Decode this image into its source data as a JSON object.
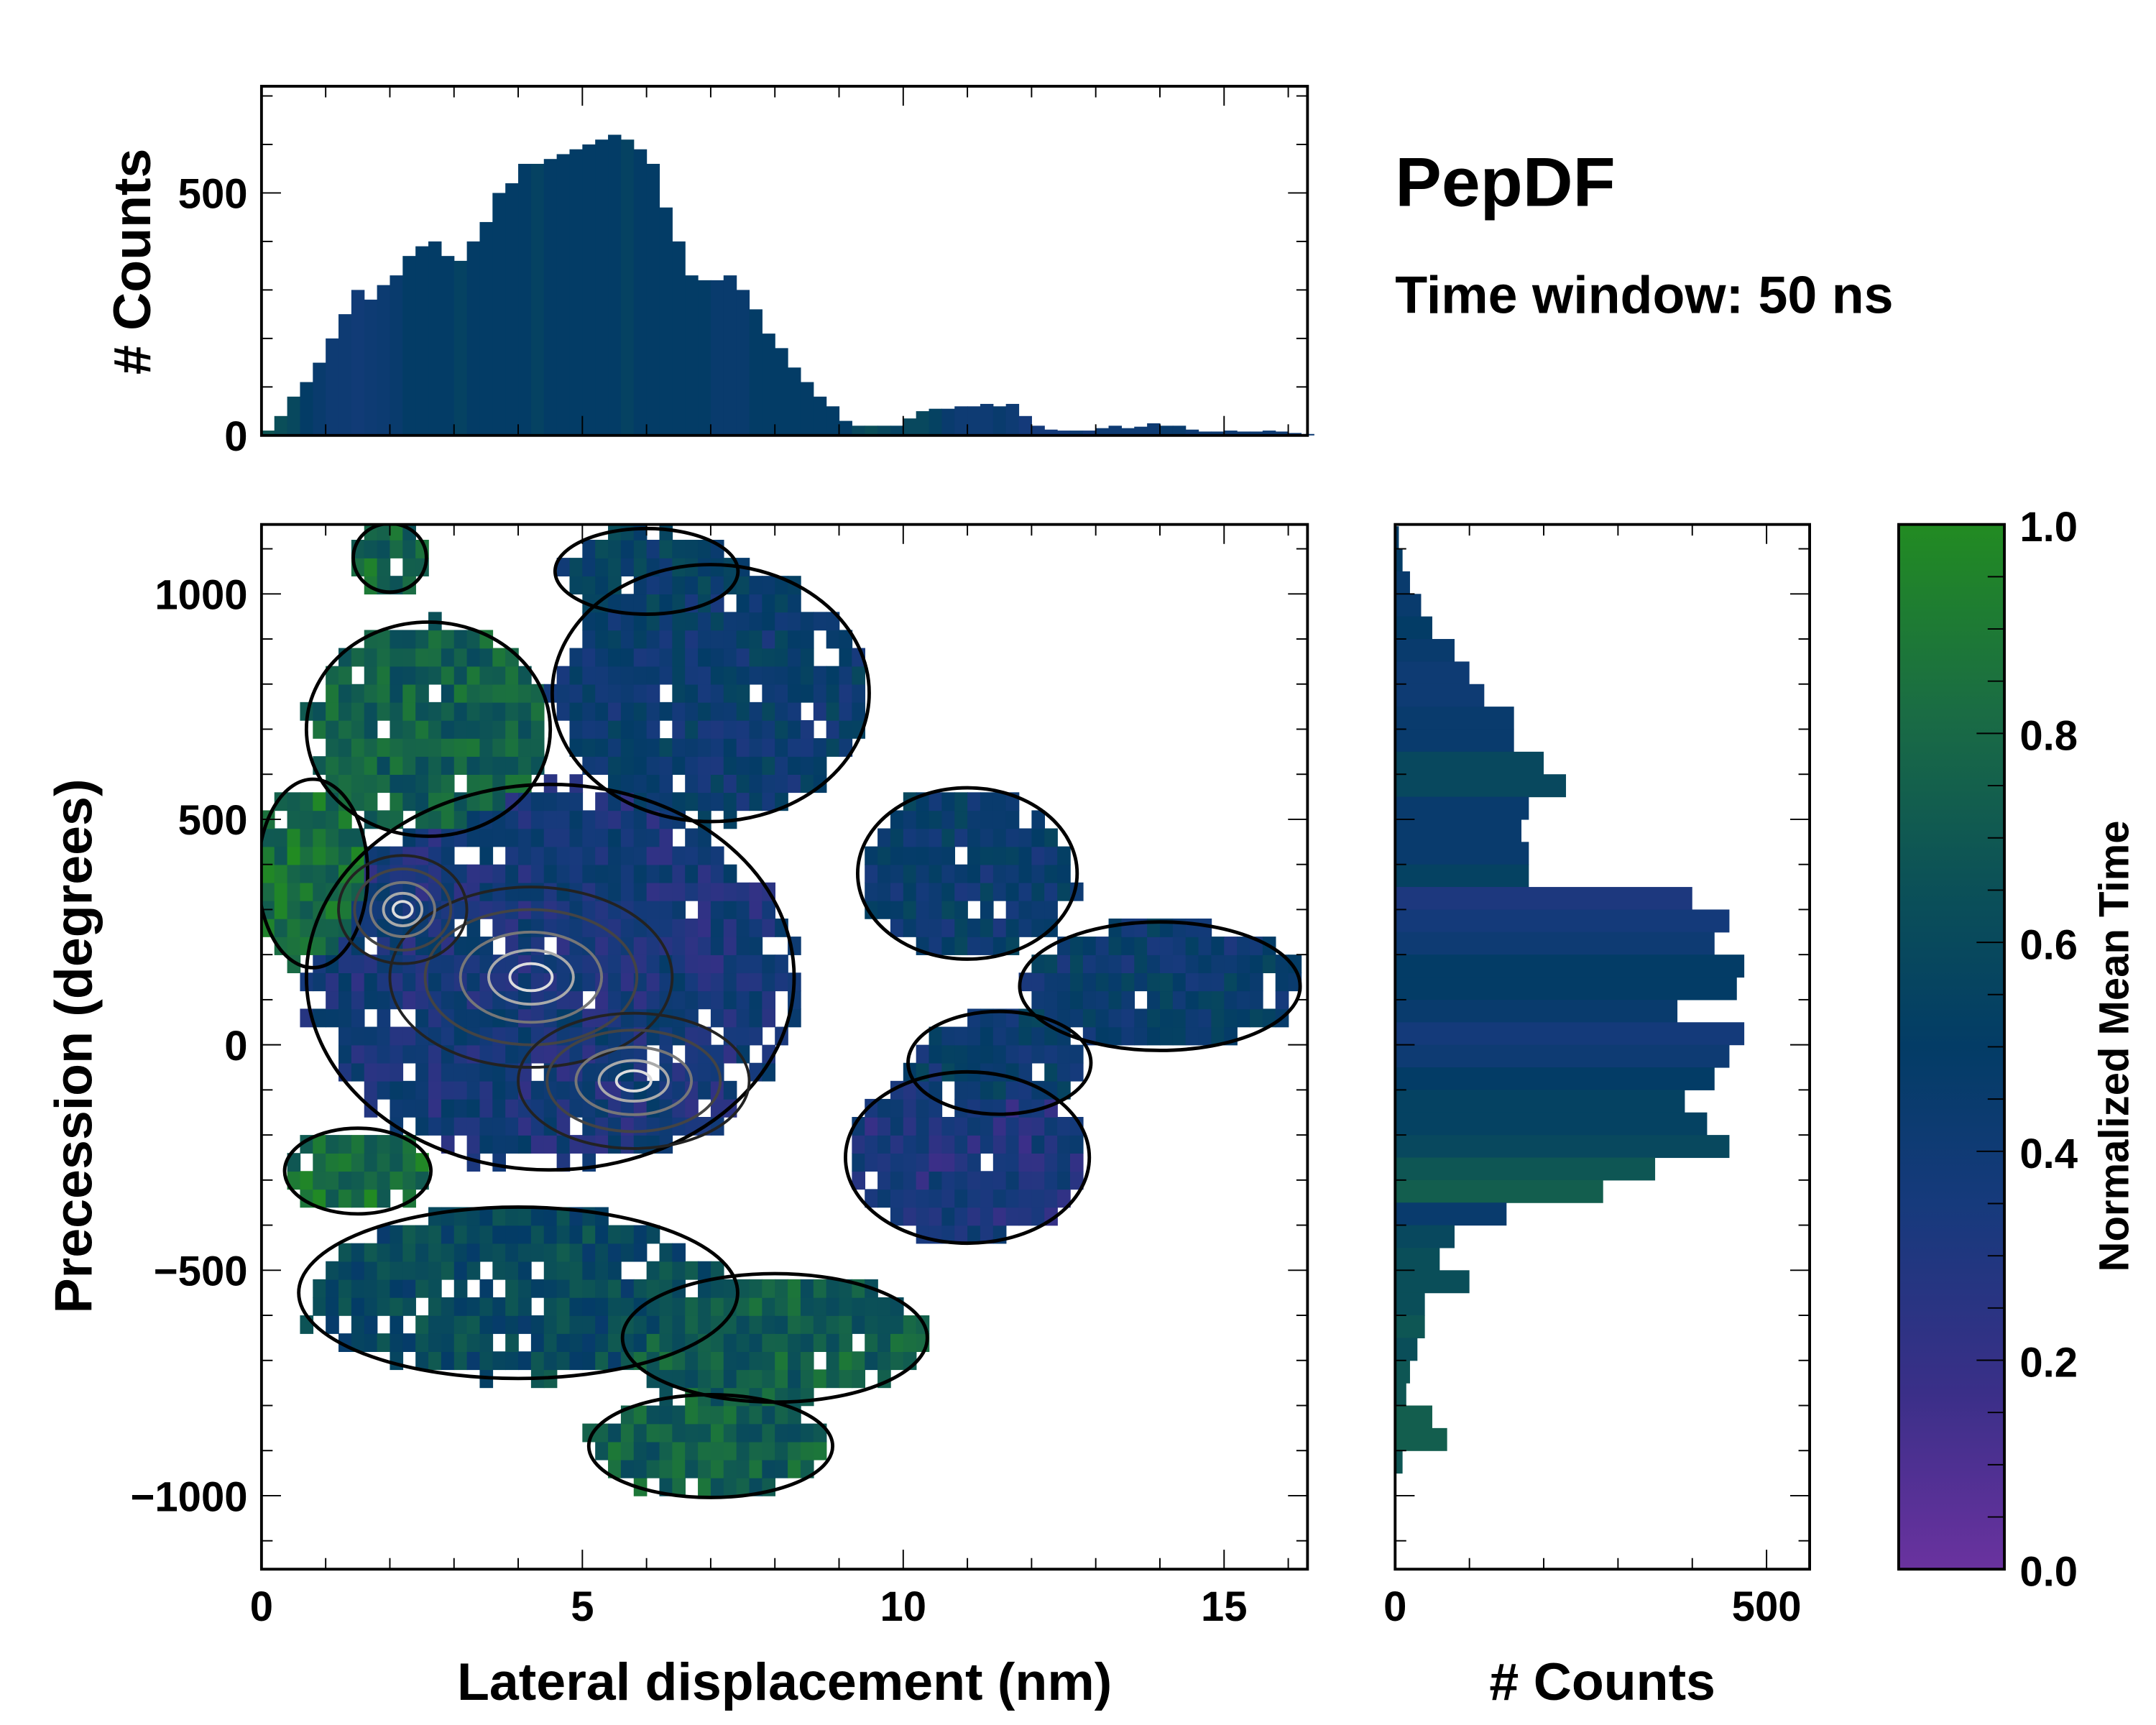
{
  "title": "PepDF",
  "subtitle": "Time window: 50 ns",
  "colors": {
    "cmap": [
      "#6a329f",
      "#3a2f88",
      "#163a7c",
      "#033c66",
      "#0b5058",
      "#1a6c44",
      "#228b22"
    ]
  },
  "chart_data": [
    {
      "name": "top-histogram",
      "type": "bar",
      "title": "",
      "xlabel": "",
      "ylabel": "# Counts",
      "xlim": [
        0,
        16.3
      ],
      "ylim": [
        0,
        720
      ],
      "yticks": [
        0,
        500
      ],
      "bin_width": 0.2,
      "x_start": 0,
      "values": [
        10,
        40,
        80,
        110,
        150,
        200,
        250,
        300,
        280,
        310,
        330,
        370,
        390,
        400,
        370,
        360,
        400,
        440,
        500,
        520,
        560,
        560,
        570,
        580,
        590,
        600,
        610,
        620,
        610,
        590,
        560,
        470,
        400,
        330,
        320,
        320,
        330,
        300,
        260,
        210,
        180,
        140,
        110,
        80,
        60,
        30,
        20,
        20,
        20,
        20,
        35,
        50,
        55,
        55,
        60,
        60,
        65,
        60,
        65,
        40,
        20,
        12,
        10,
        10,
        10,
        15,
        20,
        15,
        18,
        25,
        20,
        20,
        12,
        8,
        8,
        10,
        8,
        8,
        10,
        8,
        5,
        3
      ],
      "mean_time": [
        0.7,
        0.65,
        0.6,
        0.5,
        0.45,
        0.4,
        0.4,
        0.38,
        0.4,
        0.42,
        0.45,
        0.5,
        0.5,
        0.5,
        0.5,
        0.55,
        0.5,
        0.5,
        0.5,
        0.5,
        0.5,
        0.55,
        0.5,
        0.5,
        0.5,
        0.5,
        0.5,
        0.5,
        0.55,
        0.5,
        0.5,
        0.5,
        0.5,
        0.5,
        0.5,
        0.45,
        0.45,
        0.45,
        0.5,
        0.5,
        0.5,
        0.5,
        0.5,
        0.5,
        0.5,
        0.5,
        0.6,
        0.65,
        0.6,
        0.55,
        0.6,
        0.6,
        0.55,
        0.45,
        0.4,
        0.4,
        0.4,
        0.45,
        0.4,
        0.35,
        0.35,
        0.35,
        0.35,
        0.4,
        0.35,
        0.4,
        0.4,
        0.4,
        0.4,
        0.4,
        0.45,
        0.45,
        0.4,
        0.4,
        0.4,
        0.4,
        0.4,
        0.4,
        0.4,
        0.4,
        0.4,
        0.4
      ]
    },
    {
      "name": "main-heatmap",
      "type": "heatmap",
      "xlabel": "Lateral displacement (nm)",
      "ylabel": "Precession (degrees)",
      "xlim": [
        0,
        16.3
      ],
      "ylim": [
        -1163,
        1154
      ],
      "xticks": [
        0,
        5,
        10,
        15
      ],
      "yticks": [
        -1000,
        -500,
        0,
        500,
        1000
      ],
      "ytick_labels": [
        "−1000",
        "−500",
        "0",
        "500",
        "1000"
      ],
      "bin_x": 0.2,
      "bin_y": 40,
      "regions": [
        {
          "x": 4.5,
          "y": 150,
          "rx": 4.0,
          "ry": 450,
          "t": 0.35
        },
        {
          "x": 7.0,
          "y": 780,
          "rx": 2.6,
          "ry": 300,
          "t": 0.45
        },
        {
          "x": 2.6,
          "y": 700,
          "rx": 2.0,
          "ry": 250,
          "t": 0.75
        },
        {
          "x": 0.8,
          "y": 380,
          "rx": 0.9,
          "ry": 220,
          "t": 0.85
        },
        {
          "x": 14.0,
          "y": 130,
          "rx": 2.3,
          "ry": 150,
          "t": 0.45
        },
        {
          "x": 11.0,
          "y": 380,
          "rx": 1.8,
          "ry": 200,
          "t": 0.45
        },
        {
          "x": 11.5,
          "y": -40,
          "rx": 1.5,
          "ry": 120,
          "t": 0.45
        },
        {
          "x": 4.0,
          "y": -550,
          "rx": 3.6,
          "ry": 200,
          "t": 0.6
        },
        {
          "x": 7.0,
          "y": -890,
          "rx": 2.0,
          "ry": 120,
          "t": 0.75
        },
        {
          "x": 11.0,
          "y": -250,
          "rx": 2.0,
          "ry": 200,
          "t": 0.3
        },
        {
          "x": 2.0,
          "y": 1080,
          "rx": 0.6,
          "ry": 80,
          "t": 0.8
        },
        {
          "x": 6.0,
          "y": 1050,
          "rx": 1.5,
          "ry": 100,
          "t": 0.5
        },
        {
          "x": 8.0,
          "y": -650,
          "rx": 2.5,
          "ry": 150,
          "t": 0.75
        },
        {
          "x": 1.5,
          "y": -280,
          "rx": 1.2,
          "ry": 100,
          "t": 0.85
        }
      ],
      "density_peaks": [
        {
          "x": 4.2,
          "y": 150,
          "rx": 2.2,
          "ry": 200
        },
        {
          "x": 5.8,
          "y": -80,
          "rx": 1.8,
          "ry": 150
        },
        {
          "x": 2.2,
          "y": 300,
          "rx": 1.0,
          "ry": 120
        }
      ]
    },
    {
      "name": "right-histogram",
      "type": "bar",
      "orientation": "horizontal",
      "xlabel": "# Counts",
      "xlim": [
        0,
        558
      ],
      "xticks": [
        0,
        500
      ],
      "ylim": [
        -1163,
        1154
      ],
      "bin_width": 50,
      "y_start": 1100,
      "values": [
        5,
        10,
        20,
        35,
        50,
        80,
        100,
        120,
        160,
        160,
        200,
        230,
        180,
        170,
        180,
        180,
        400,
        450,
        430,
        470,
        460,
        380,
        470,
        450,
        430,
        390,
        420,
        450,
        350,
        280,
        150,
        80,
        60,
        100,
        40,
        40,
        30,
        20,
        15,
        50,
        70,
        10
      ],
      "mean_time": [
        0.5,
        0.5,
        0.45,
        0.45,
        0.5,
        0.45,
        0.4,
        0.4,
        0.45,
        0.45,
        0.6,
        0.6,
        0.45,
        0.45,
        0.45,
        0.55,
        0.3,
        0.35,
        0.4,
        0.5,
        0.5,
        0.45,
        0.35,
        0.4,
        0.5,
        0.55,
        0.55,
        0.6,
        0.7,
        0.75,
        0.45,
        0.6,
        0.65,
        0.65,
        0.65,
        0.7,
        0.65,
        0.7,
        0.7,
        0.75,
        0.75,
        0.7
      ]
    },
    {
      "name": "colorbar",
      "type": "colorbar",
      "label": "Normalized Mean Time",
      "ylim": [
        0,
        1
      ],
      "ticks": [
        0.0,
        0.2,
        0.4,
        0.6,
        0.8,
        1.0
      ],
      "tick_labels": [
        "0.0",
        "0.2",
        "0.4",
        "0.6",
        "0.8",
        "1.0"
      ]
    }
  ]
}
